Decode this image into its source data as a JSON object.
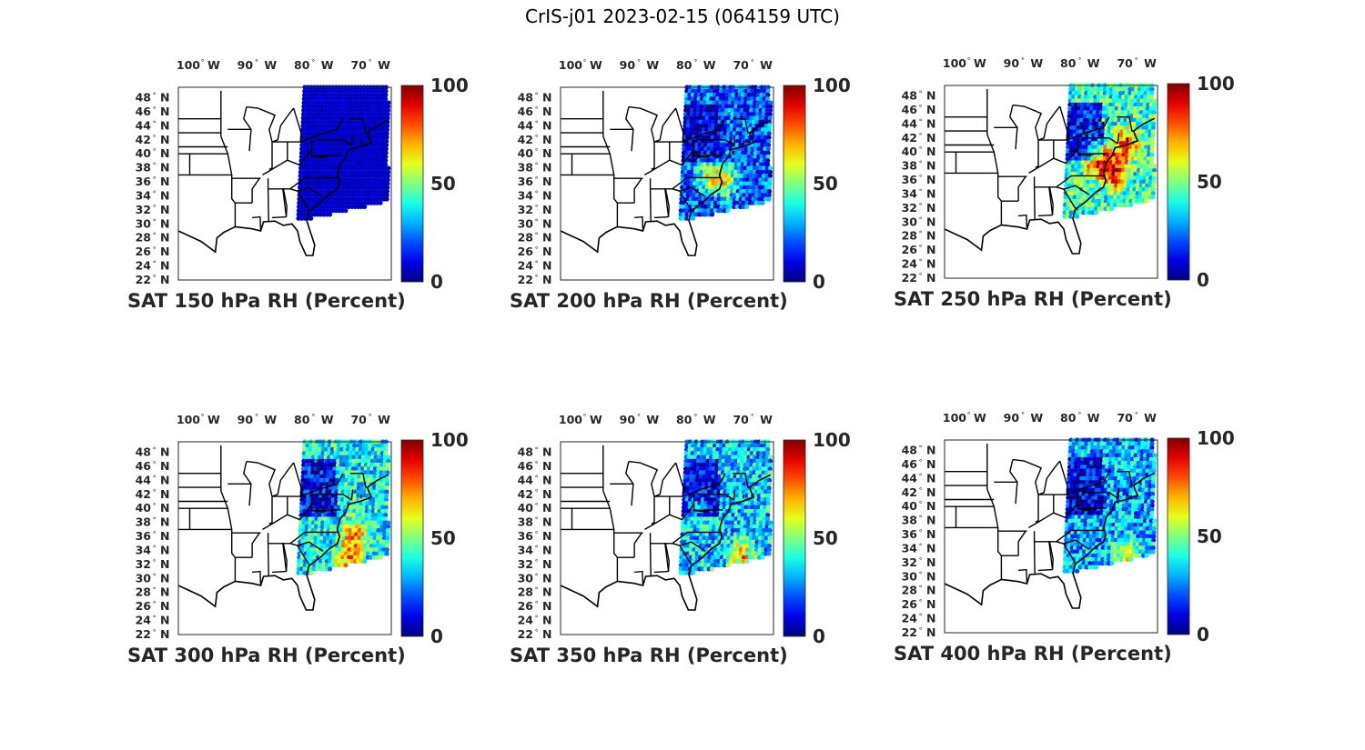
{
  "figure_title": "CrIS-j01 2023-02-15 (064159 UTC)",
  "chart_data": [
    {
      "type": "scatter-map",
      "title": "SAT 150 hPa RH (Percent)",
      "level": 150,
      "clim": [
        0,
        100
      ],
      "moisture": 0.05,
      "hotspots": [],
      "lon_ticks": [
        "100",
        "90",
        "80",
        "70"
      ],
      "lon_hemi": "W",
      "lat_ticks": [
        "48",
        "46",
        "44",
        "42",
        "40",
        "38",
        "36",
        "34",
        "32",
        "30",
        "28",
        "26",
        "24",
        "22"
      ],
      "lat_hemi": "N",
      "colorbar_ticks": [
        "100",
        "50",
        "0"
      ]
    },
    {
      "type": "scatter-map",
      "title": "SAT 200 hPa RH (Percent)",
      "level": 200,
      "clim": [
        0,
        100
      ],
      "moisture": 0.2,
      "hotspots": [
        [
          -75,
          36,
          0.45
        ],
        [
          -78,
          37,
          0.35
        ]
      ],
      "lon_ticks": [
        "100",
        "90",
        "80",
        "70"
      ],
      "lon_hemi": "W",
      "lat_ticks": [
        "48",
        "46",
        "44",
        "42",
        "40",
        "38",
        "36",
        "34",
        "32",
        "30",
        "28",
        "26",
        "24",
        "22"
      ],
      "lat_hemi": "N",
      "colorbar_ticks": [
        "100",
        "50",
        "0"
      ]
    },
    {
      "type": "scatter-map",
      "title": "SAT 250 hPa RH (Percent)",
      "level": 250,
      "clim": [
        0,
        100
      ],
      "moisture": 0.42,
      "hotspots": [
        [
          -74,
          37,
          0.55
        ],
        [
          -77,
          39,
          0.5
        ],
        [
          -72,
          41,
          0.45
        ]
      ],
      "lon_ticks": [
        "100",
        "90",
        "80",
        "70"
      ],
      "lon_hemi": "W",
      "lat_ticks": [
        "48",
        "46",
        "44",
        "42",
        "40",
        "38",
        "36",
        "34",
        "32",
        "30",
        "28",
        "26",
        "24",
        "22"
      ],
      "lat_hemi": "N",
      "colorbar_ticks": [
        "100",
        "50",
        "0"
      ]
    },
    {
      "type": "scatter-map",
      "title": "SAT 300 hPa RH (Percent)",
      "level": 300,
      "clim": [
        0,
        100
      ],
      "moisture": 0.38,
      "hotspots": [
        [
          -73,
          36,
          0.45
        ],
        [
          -74,
          32,
          0.4
        ]
      ],
      "lon_ticks": [
        "100",
        "90",
        "80",
        "70"
      ],
      "lon_hemi": "W",
      "lat_ticks": [
        "48",
        "46",
        "44",
        "42",
        "40",
        "38",
        "36",
        "34",
        "32",
        "30",
        "28",
        "26",
        "24",
        "22"
      ],
      "lat_hemi": "N",
      "colorbar_ticks": [
        "100",
        "50",
        "0"
      ]
    },
    {
      "type": "scatter-map",
      "title": "SAT 350 hPa RH (Percent)",
      "level": 350,
      "clim": [
        0,
        100
      ],
      "moisture": 0.33,
      "hotspots": [
        [
          -72,
          33,
          0.4
        ],
        [
          -80,
          40,
          0.2
        ]
      ],
      "lon_ticks": [
        "100",
        "90",
        "80",
        "70"
      ],
      "lon_hemi": "W",
      "lat_ticks": [
        "48",
        "46",
        "44",
        "42",
        "40",
        "38",
        "36",
        "34",
        "32",
        "30",
        "28",
        "26",
        "24",
        "22"
      ],
      "lat_hemi": "N",
      "colorbar_ticks": [
        "100",
        "50",
        "0"
      ]
    },
    {
      "type": "scatter-map",
      "title": "SAT 400 hPa RH (Percent)",
      "level": 400,
      "clim": [
        0,
        100
      ],
      "moisture": 0.3,
      "hotspots": [
        [
          -72,
          33,
          0.35
        ]
      ],
      "lon_ticks": [
        "100",
        "90",
        "80",
        "70"
      ],
      "lon_hemi": "W",
      "lat_ticks": [
        "48",
        "46",
        "44",
        "42",
        "40",
        "38",
        "36",
        "34",
        "32",
        "30",
        "28",
        "26",
        "24",
        "22"
      ],
      "lat_hemi": "N",
      "colorbar_ticks": [
        "100",
        "50",
        "0"
      ]
    }
  ]
}
